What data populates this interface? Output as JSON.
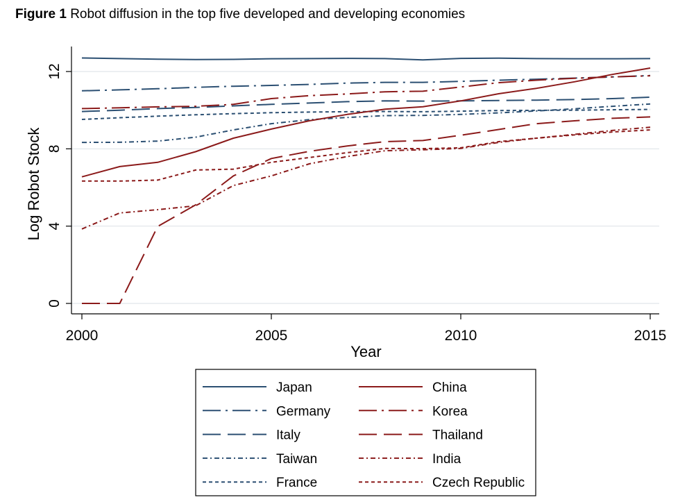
{
  "caption": {
    "label": "Figure 1",
    "text": "Robot diffusion in the top five developed and developing economies"
  },
  "chart_data": {
    "type": "line",
    "title": "",
    "xlabel": "Year",
    "ylabel": "Log Robot Stock",
    "xlim": [
      2000,
      2015
    ],
    "ylim": [
      -0.5,
      13.3
    ],
    "xticks": [
      2000,
      2005,
      2010,
      2015
    ],
    "yticks": [
      0,
      4,
      8,
      12
    ],
    "grid": "horizontal",
    "legend_position": "bottom",
    "legend_columns": 2,
    "x": [
      2000,
      2001,
      2002,
      2003,
      2004,
      2005,
      2006,
      2007,
      2008,
      2009,
      2010,
      2011,
      2012,
      2013,
      2014,
      2015
    ],
    "series": [
      {
        "name": "Japan",
        "color": "#2b4f72",
        "dash": "solid",
        "values": [
          12.7,
          12.67,
          12.64,
          12.62,
          12.63,
          12.66,
          12.67,
          12.68,
          12.67,
          12.6,
          12.68,
          12.69,
          12.67,
          12.66,
          12.66,
          12.67
        ]
      },
      {
        "name": "Germany",
        "color": "#2b4f72",
        "dash": "longdash-dot",
        "values": [
          11.0,
          11.05,
          11.11,
          11.18,
          11.24,
          11.28,
          11.33,
          11.4,
          11.44,
          11.44,
          11.49,
          11.55,
          11.6,
          11.66,
          11.72,
          11.79
        ]
      },
      {
        "name": "Italy",
        "color": "#2b4f72",
        "dash": "longdash",
        "values": [
          9.93,
          10.0,
          10.08,
          10.14,
          10.22,
          10.3,
          10.37,
          10.44,
          10.48,
          10.47,
          10.48,
          10.5,
          10.52,
          10.55,
          10.6,
          10.67
        ]
      },
      {
        "name": "Taiwan",
        "color": "#2b4f72",
        "dash": "shortdash-dot",
        "values": [
          8.33,
          8.34,
          8.4,
          8.6,
          8.98,
          9.3,
          9.51,
          9.62,
          9.72,
          9.73,
          9.78,
          9.86,
          9.96,
          10.07,
          10.2,
          10.32
        ]
      },
      {
        "name": "France",
        "color": "#2b4f72",
        "dash": "shortdash",
        "values": [
          9.52,
          9.61,
          9.69,
          9.76,
          9.82,
          9.87,
          9.9,
          9.92,
          9.93,
          9.92,
          9.95,
          9.98,
          9.99,
          10.0,
          10.02,
          10.04
        ]
      },
      {
        "name": "China",
        "color": "#8b1a1a",
        "dash": "solid",
        "values": [
          6.55,
          7.08,
          7.3,
          7.85,
          8.55,
          9.02,
          9.45,
          9.78,
          10.05,
          10.18,
          10.48,
          10.85,
          11.13,
          11.47,
          11.85,
          12.18
        ]
      },
      {
        "name": "Korea",
        "color": "#8b1a1a",
        "dash": "longdash-dot",
        "values": [
          10.08,
          10.12,
          10.17,
          10.2,
          10.3,
          10.6,
          10.75,
          10.84,
          10.95,
          10.98,
          11.2,
          11.42,
          11.55,
          11.65,
          11.72,
          11.78
        ]
      },
      {
        "name": "Thailand",
        "color": "#8b1a1a",
        "dash": "longdash",
        "values": [
          0,
          0,
          3.98,
          5.1,
          6.6,
          7.5,
          7.87,
          8.15,
          8.37,
          8.43,
          8.7,
          9.0,
          9.3,
          9.45,
          9.58,
          9.65
        ]
      },
      {
        "name": "India",
        "color": "#8b1a1a",
        "dash": "shortdash-dot",
        "values": [
          3.85,
          4.68,
          4.85,
          5.05,
          6.1,
          6.6,
          7.22,
          7.6,
          7.9,
          7.95,
          8.02,
          8.33,
          8.55,
          8.75,
          8.95,
          9.12
        ]
      },
      {
        "name": "Czech Republic",
        "color": "#8b1a1a",
        "dash": "shortdash",
        "values": [
          6.33,
          6.33,
          6.38,
          6.9,
          6.95,
          7.3,
          7.55,
          7.8,
          8.02,
          8.01,
          8.05,
          8.37,
          8.55,
          8.72,
          8.87,
          8.98
        ]
      }
    ]
  }
}
